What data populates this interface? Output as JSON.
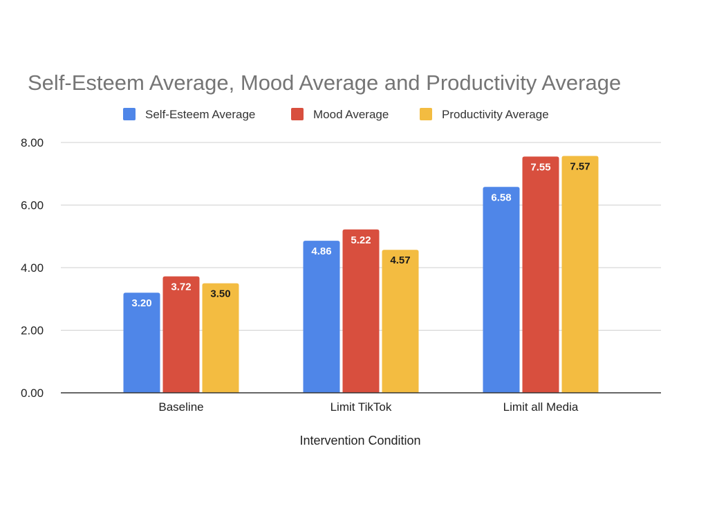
{
  "chart_data": {
    "type": "bar",
    "title": "Self-Esteem Average, Mood Average and Productivity Average",
    "xlabel": "Intervention Condition",
    "ylabel": "",
    "ylim": [
      0,
      8
    ],
    "yticks": [
      "0.00",
      "2.00",
      "4.00",
      "6.00",
      "8.00"
    ],
    "grid": true,
    "legend_position": "top",
    "categories": [
      "Baseline",
      "Limit TikTok",
      "Limit all Media"
    ],
    "series": [
      {
        "name": "Self-Esteem Average",
        "color": "#4f86e8",
        "values": [
          3.2,
          4.86,
          6.58
        ],
        "labels": [
          "3.20",
          "4.86",
          "6.58"
        ],
        "label_color": "#ffffff"
      },
      {
        "name": "Mood Average",
        "color": "#d84f3e",
        "values": [
          3.72,
          5.22,
          7.55
        ],
        "labels": [
          "3.72",
          "5.22",
          "7.55"
        ],
        "label_color": "#ffffff"
      },
      {
        "name": "Productivity Average",
        "color": "#f3bc41",
        "values": [
          3.5,
          4.57,
          7.57
        ],
        "labels": [
          "3.50",
          "4.57",
          "7.57"
        ],
        "label_color": "#1a1a1a"
      }
    ]
  }
}
